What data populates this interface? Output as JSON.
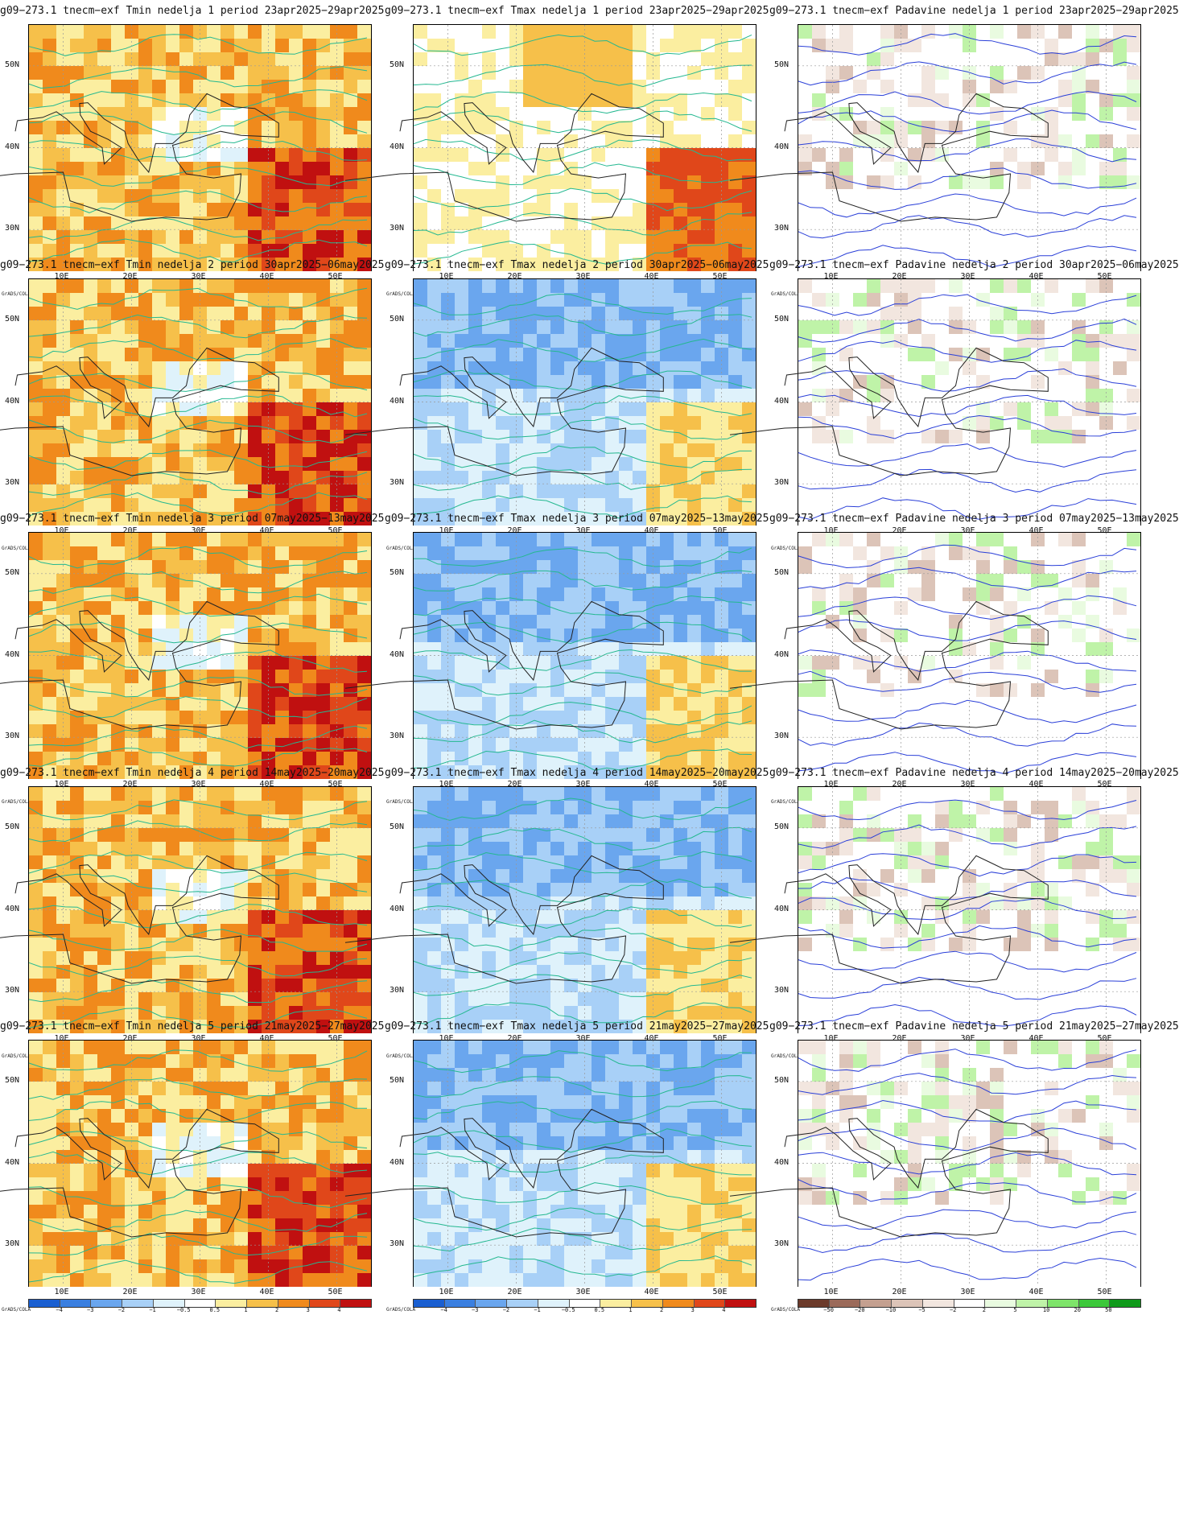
{
  "panels": [
    {
      "title": "g09−273.1 tnecm−exf Tmin nedelja 1 period 23apr2025−29apr2025",
      "var": "tmin",
      "week": 1
    },
    {
      "title": "g09−273.1 tnecm−exf Tmax nedelja 1 period 23apr2025−29apr2025",
      "var": "tmax",
      "week": 1
    },
    {
      "title": "g09−273.1 tnecm−exf Padavine nedelja 1 period 23apr2025−29apr2025",
      "var": "prec",
      "week": 1
    },
    {
      "title": "g09−273.1 tnecm−exf Tmin nedelja 2 period 30apr2025−06may2025",
      "var": "tmin",
      "week": 2
    },
    {
      "title": "g09−273.1 tnecm−exf Tmax nedelja 2 period 30apr2025−06may2025",
      "var": "tmax",
      "week": 2
    },
    {
      "title": "g09−273.1 tnecm−exf Padavine nedelja 2 period 30apr2025−06may2025",
      "var": "prec",
      "week": 2
    },
    {
      "title": "g09−273.1 tnecm−exf Tmin nedelja 3 period 07may2025−13may2025",
      "var": "tmin",
      "week": 3
    },
    {
      "title": "g09−273.1 tnecm−exf Tmax nedelja 3 period 07may2025−13may2025",
      "var": "tmax",
      "week": 3
    },
    {
      "title": "g09−273.1 tnecm−exf Padavine nedelja 3 period 07may2025−13may2025",
      "var": "prec",
      "week": 3
    },
    {
      "title": "g09−273.1 tnecm−exf Tmin nedelja 4 period 14may2025−20may2025",
      "var": "tmin",
      "week": 4
    },
    {
      "title": "g09−273.1 tnecm−exf Tmax nedelja 4 period 14may2025−20may2025",
      "var": "tmax",
      "week": 4
    },
    {
      "title": "g09−273.1 tnecm−exf Padavine nedelja 4 period 14may2025−20may2025",
      "var": "prec",
      "week": 4
    },
    {
      "title": "g09−273.1 tnecm−exf Tmin nedelja 5 period 21may2025−27may2025",
      "var": "tmin",
      "week": 5
    },
    {
      "title": "g09−273.1 tnecm−exf Tmax nedelja 5 period 21may2025−27may2025",
      "var": "tmax",
      "week": 5
    },
    {
      "title": "g09−273.1 tnecm−exf Padavine nedelja 5 period 21may2025−27may2025",
      "var": "prec",
      "week": 5
    }
  ],
  "axes": {
    "lat_labels": [
      "50N",
      "40N",
      "30N"
    ],
    "lon_labels": [
      "10E",
      "20E",
      "30E",
      "40E",
      "50E"
    ]
  },
  "colorbars": {
    "temp": {
      "labels": [
        "−4",
        "−3",
        "−2",
        "−1",
        "−0.5",
        "0.5",
        "1",
        "2",
        "3",
        "4"
      ],
      "colors": [
        "#1a5fd1",
        "#3a7fe0",
        "#6aa6ee",
        "#a8d0f7",
        "#dff2fb",
        "#ffffff",
        "#fbeea0",
        "#f6c04a",
        "#f08a1c",
        "#e0471a",
        "#c01010"
      ]
    },
    "prec": {
      "labels": [
        "−50",
        "−20",
        "−10",
        "−5",
        "−2",
        "2",
        "5",
        "10",
        "20",
        "50"
      ],
      "colors": [
        "#6b3a2a",
        "#9b6a5a",
        "#c4a090",
        "#dcc4b8",
        "#f2e6df",
        "#ffffff",
        "#e9fbe0",
        "#bff3a8",
        "#7ee46a",
        "#3cc83a",
        "#0f9a1a"
      ]
    }
  },
  "grads_label": "GrADS/COLA",
  "colors": {
    "temp_contour": "#24b890",
    "prec_contour": "#2a3fd8",
    "coast": "#222222",
    "border": "#8a8a8a"
  }
}
